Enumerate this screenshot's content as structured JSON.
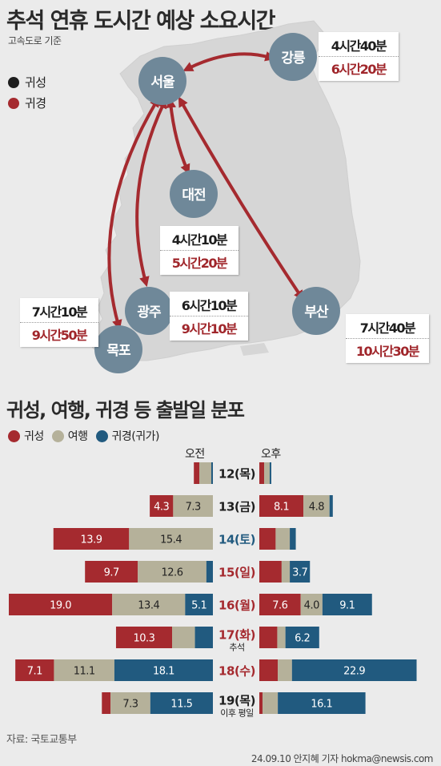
{
  "title": "추석 연휴 도시간 예상 소요시간",
  "subtitle": "고속도로 기준",
  "legend_top": [
    {
      "label": "귀성",
      "color": "#1e1e1e"
    },
    {
      "label": "귀경",
      "color": "#a52a2f"
    }
  ],
  "cities": {
    "seoul": "서울",
    "gangneung": "강릉",
    "daejeon": "대전",
    "gwangju": "광주",
    "mokpo": "목포",
    "busan": "부산"
  },
  "times": {
    "gangneung": {
      "go": "4시간40분",
      "return": "6시간20분"
    },
    "daejeon": {
      "go": "4시간10분",
      "return": "5시간20분"
    },
    "gwangju": {
      "go": "6시간10분",
      "return": "9시간10분"
    },
    "mokpo": {
      "go": "7시간10분",
      "return": "9시간50분"
    },
    "busan": {
      "go": "7시간40분",
      "return": "10시간30분"
    }
  },
  "section_title": "귀성, 여행, 귀경 등 출발일 분포",
  "legend_bottom": [
    {
      "label": "귀성",
      "color": "#a52a2f"
    },
    {
      "label": "여행",
      "color": "#b5b19a"
    },
    {
      "label": "귀경(귀가)",
      "color": "#215a7f"
    }
  ],
  "am_label": "오전",
  "pm_label": "오후",
  "chart_data": {
    "type": "bar",
    "title": "귀성, 여행, 귀경 등 출발일 분포",
    "series_names": [
      "귀성",
      "여행",
      "귀경(귀가)"
    ],
    "colors": {
      "귀성": "#a52a2f",
      "여행": "#b5b19a",
      "귀경(귀가)": "#215a7f"
    },
    "days": [
      {
        "label": "12(목)",
        "color": "#1e1e1e",
        "note": "",
        "am": {
          "values": [
            1.0,
            2.2,
            0.3
          ],
          "labels": [
            "",
            "",
            ""
          ]
        },
        "pm": {
          "values": [
            0.9,
            1.0,
            0.3
          ],
          "labels": [
            "",
            "",
            ""
          ]
        }
      },
      {
        "label": "13(금)",
        "color": "#1e1e1e",
        "note": "",
        "am": {
          "values": [
            4.3,
            7.3,
            0.0
          ],
          "labels": [
            "4.3",
            "7.3",
            ""
          ]
        },
        "pm": {
          "values": [
            8.1,
            4.8,
            0.6
          ],
          "labels": [
            "8.1",
            "4.8",
            ""
          ]
        }
      },
      {
        "label": "14(토)",
        "color": "#215a7f",
        "note": "",
        "am": {
          "values": [
            13.9,
            15.4,
            0.0
          ],
          "labels": [
            "13.9",
            "15.4",
            ""
          ]
        },
        "pm": {
          "values": [
            3.0,
            2.6,
            1.1
          ],
          "labels": [
            "",
            "",
            ""
          ]
        }
      },
      {
        "label": "15(일)",
        "color": "#a52a2f",
        "note": "",
        "am": {
          "values": [
            9.7,
            12.6,
            1.2
          ],
          "labels": [
            "9.7",
            "12.6",
            ""
          ]
        },
        "pm": {
          "values": [
            4.1,
            1.5,
            3.7
          ],
          "labels": [
            "",
            "",
            "3.7"
          ]
        }
      },
      {
        "label": "16(월)",
        "color": "#a52a2f",
        "note": "",
        "am": {
          "values": [
            19.0,
            13.4,
            5.1
          ],
          "labels": [
            "19.0",
            "13.4",
            "5.1"
          ]
        },
        "pm": {
          "values": [
            7.6,
            4.0,
            9.1
          ],
          "labels": [
            "7.6",
            "4.0",
            "9.1"
          ]
        }
      },
      {
        "label": "17(화)",
        "color": "#a52a2f",
        "note": "추석",
        "am": {
          "values": [
            10.3,
            4.2,
            3.3
          ],
          "labels": [
            "10.3",
            "",
            ""
          ]
        },
        "pm": {
          "values": [
            3.3,
            1.5,
            6.2
          ],
          "labels": [
            "",
            "",
            "6.2"
          ]
        }
      },
      {
        "label": "18(수)",
        "color": "#a52a2f",
        "note": "",
        "am": {
          "values": [
            7.1,
            11.1,
            18.1
          ],
          "labels": [
            "7.1",
            "11.1",
            "18.1"
          ]
        },
        "pm": {
          "values": [
            3.4,
            2.6,
            22.9
          ],
          "labels": [
            "",
            "",
            "22.9"
          ]
        }
      },
      {
        "label": "19(목)",
        "color": "#1e1e1e",
        "note": "이후 평일",
        "am": {
          "values": [
            1.6,
            7.3,
            11.5
          ],
          "labels": [
            "",
            "7.3",
            "11.5"
          ]
        },
        "pm": {
          "values": [
            0.6,
            2.8,
            16.1
          ],
          "labels": [
            "",
            "",
            "16.1"
          ]
        }
      }
    ]
  },
  "source": "자료: 국토교통부",
  "credit": "24.09.10 안지혜 기자 hokma@newsis.com"
}
